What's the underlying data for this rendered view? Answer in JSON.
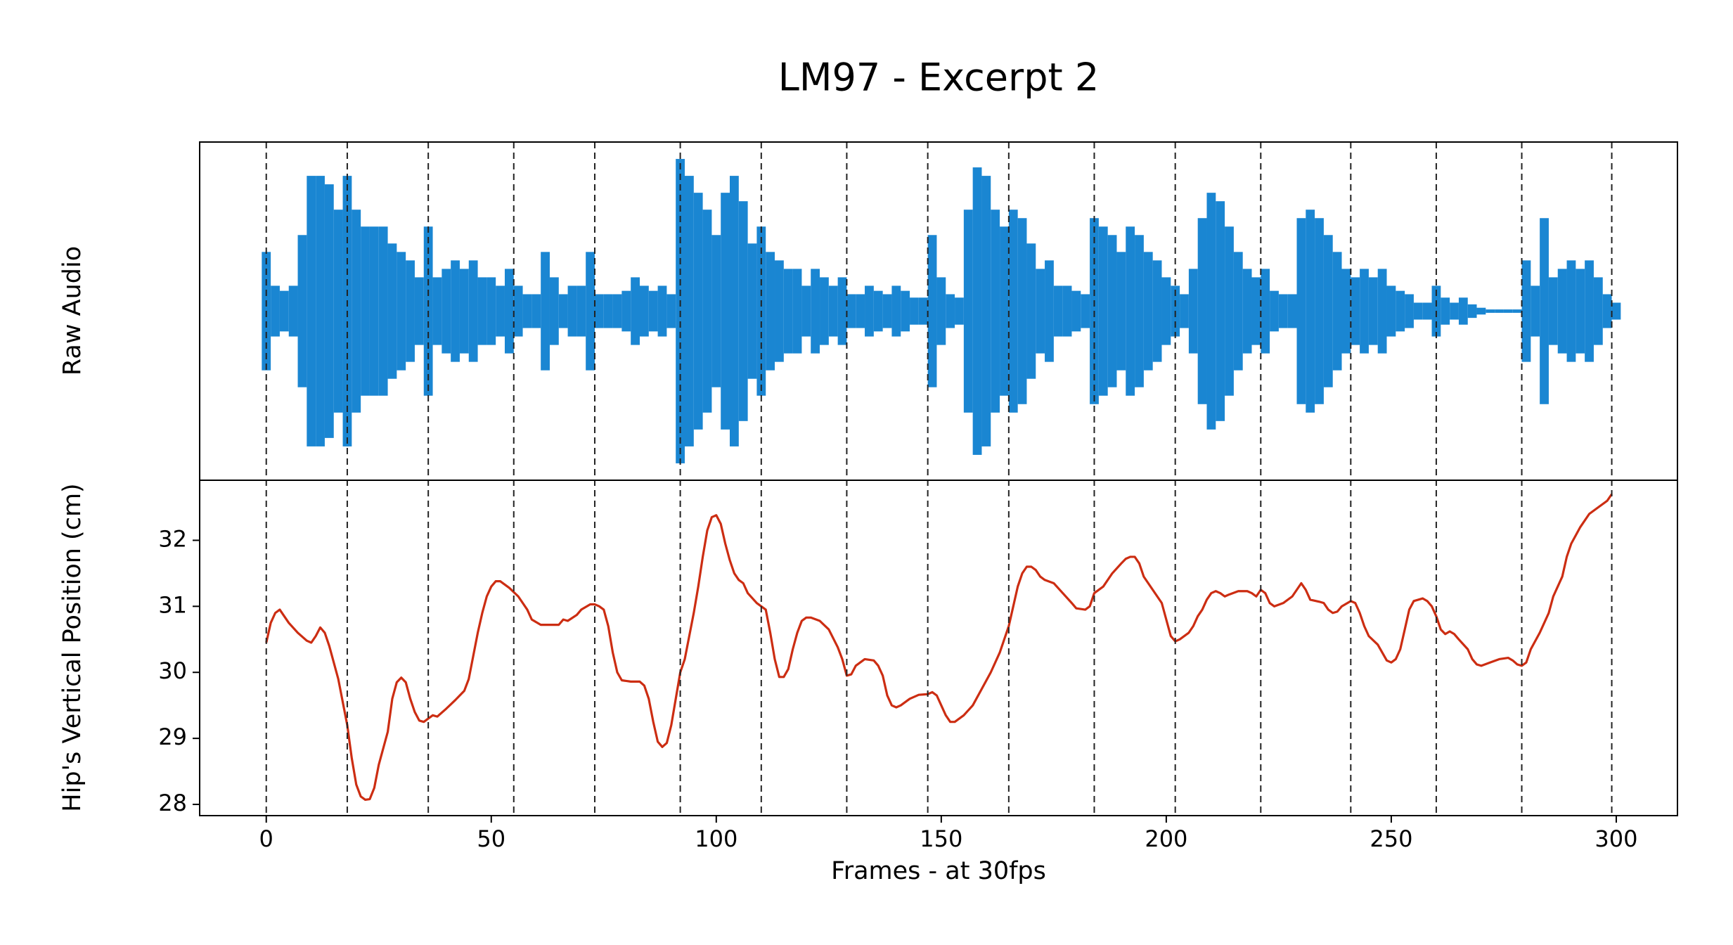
{
  "title": "LM97 - Excerpt 2",
  "x_label": "Frames - at 30fps",
  "xlim": [
    -14.8,
    313.6
  ],
  "xticks": [
    0,
    50,
    100,
    150,
    200,
    250,
    300
  ],
  "beats": [
    0,
    18,
    36,
    55,
    73,
    92,
    110,
    129,
    147,
    165,
    184,
    202,
    221,
    241,
    260,
    279,
    299
  ],
  "chart_data": [
    {
      "type": "waveform",
      "y_label": "Raw Audio",
      "color": "#1a86d2",
      "ylim": [
        -1,
        1
      ],
      "x": [
        0,
        2,
        4,
        6,
        8,
        10,
        12,
        14,
        16,
        18,
        20,
        22,
        24,
        26,
        28,
        30,
        32,
        34,
        36,
        38,
        40,
        42,
        44,
        46,
        48,
        50,
        52,
        54,
        56,
        58,
        60,
        62,
        64,
        66,
        68,
        70,
        72,
        74,
        76,
        78,
        80,
        82,
        84,
        86,
        88,
        90,
        92,
        94,
        96,
        98,
        100,
        102,
        104,
        106,
        108,
        110,
        112,
        114,
        116,
        118,
        120,
        122,
        124,
        126,
        128,
        130,
        132,
        134,
        136,
        138,
        140,
        142,
        144,
        146,
        148,
        150,
        152,
        154,
        156,
        158,
        160,
        162,
        164,
        166,
        168,
        170,
        172,
        174,
        176,
        178,
        180,
        182,
        184,
        186,
        188,
        190,
        192,
        194,
        196,
        198,
        200,
        202,
        204,
        206,
        208,
        210,
        212,
        214,
        216,
        218,
        220,
        222,
        224,
        226,
        228,
        230,
        232,
        234,
        236,
        238,
        240,
        242,
        244,
        246,
        248,
        250,
        252,
        254,
        256,
        258,
        260,
        262,
        264,
        266,
        268,
        270,
        272,
        274,
        276,
        278,
        280,
        282,
        284,
        286,
        288,
        290,
        292,
        294,
        296,
        298,
        300
      ],
      "values": [
        0.35,
        0.15,
        0.12,
        0.15,
        0.45,
        0.8,
        0.8,
        0.75,
        0.6,
        0.8,
        0.6,
        0.5,
        0.5,
        0.5,
        0.4,
        0.35,
        0.3,
        0.2,
        0.5,
        0.2,
        0.25,
        0.3,
        0.25,
        0.3,
        0.2,
        0.2,
        0.15,
        0.25,
        0.15,
        0.1,
        0.1,
        0.35,
        0.2,
        0.1,
        0.15,
        0.15,
        0.35,
        0.1,
        0.1,
        0.1,
        0.12,
        0.2,
        0.15,
        0.12,
        0.15,
        0.1,
        0.9,
        0.8,
        0.7,
        0.6,
        0.45,
        0.7,
        0.8,
        0.65,
        0.4,
        0.5,
        0.35,
        0.3,
        0.25,
        0.25,
        0.15,
        0.25,
        0.2,
        0.15,
        0.2,
        0.1,
        0.1,
        0.15,
        0.12,
        0.1,
        0.15,
        0.12,
        0.08,
        0.08,
        0.45,
        0.2,
        0.1,
        0.08,
        0.6,
        0.85,
        0.8,
        0.6,
        0.5,
        0.6,
        0.55,
        0.4,
        0.25,
        0.3,
        0.15,
        0.15,
        0.12,
        0.1,
        0.55,
        0.5,
        0.45,
        0.35,
        0.5,
        0.45,
        0.35,
        0.3,
        0.2,
        0.15,
        0.1,
        0.25,
        0.55,
        0.7,
        0.65,
        0.5,
        0.35,
        0.25,
        0.2,
        0.25,
        0.12,
        0.1,
        0.1,
        0.55,
        0.6,
        0.55,
        0.45,
        0.35,
        0.25,
        0.2,
        0.25,
        0.2,
        0.25,
        0.15,
        0.12,
        0.1,
        0.05,
        0.05,
        0.15,
        0.08,
        0.05,
        0.08,
        0.04,
        0.02,
        0.01,
        0.01,
        0.01,
        0.01,
        0.3,
        0.15,
        0.55,
        0.2,
        0.25,
        0.3,
        0.25,
        0.3,
        0.2,
        0.1,
        0.05
      ]
    },
    {
      "type": "line",
      "y_label": "Hip's Vertical Position (cm)",
      "color": "#cc2d12",
      "ylim": [
        27.83,
        32.91
      ],
      "yticks": [
        28,
        29,
        30,
        31,
        32
      ],
      "x": [
        0,
        1,
        2,
        3,
        5,
        7,
        9,
        10,
        11,
        12,
        13,
        14,
        16,
        18,
        19,
        20,
        21,
        22,
        23,
        24,
        25,
        27,
        28,
        29,
        30,
        31,
        32,
        33,
        34,
        35,
        36,
        37,
        38,
        40,
        42,
        44,
        45,
        46,
        47,
        48,
        49,
        50,
        51,
        52,
        54,
        56,
        58,
        59,
        61,
        63,
        65,
        66,
        67,
        69,
        70,
        72,
        73,
        74,
        75,
        76,
        77,
        78,
        79,
        81,
        83,
        84,
        85,
        86,
        87,
        88,
        89,
        90,
        91,
        92,
        93,
        94,
        95,
        96,
        97,
        98,
        99,
        100,
        101,
        102,
        103,
        104,
        105,
        106,
        107,
        109,
        111,
        112,
        113,
        114,
        115,
        116,
        117,
        118,
        119,
        120,
        121,
        123,
        125,
        127,
        128,
        129,
        130,
        131,
        133,
        135,
        136,
        137,
        138,
        139,
        140,
        141,
        143,
        145,
        147,
        148,
        149,
        150,
        151,
        152,
        153,
        155,
        157,
        159,
        161,
        163,
        164,
        165,
        166,
        167,
        168,
        169,
        170,
        171,
        172,
        173,
        175,
        177,
        179,
        180,
        182,
        183,
        184,
        186,
        188,
        190,
        191,
        192,
        193,
        194,
        195,
        197,
        199,
        200,
        201,
        202,
        203,
        205,
        206,
        207,
        208,
        209,
        210,
        211,
        212,
        213,
        214,
        216,
        218,
        219,
        220,
        221,
        222,
        223,
        224,
        226,
        228,
        229,
        230,
        231,
        232,
        234,
        235,
        236,
        237,
        238,
        239,
        241,
        242,
        243,
        244,
        245,
        247,
        248,
        249,
        250,
        251,
        252,
        253,
        254,
        255,
        257,
        258,
        259,
        260,
        261,
        262,
        263,
        264,
        265,
        267,
        268,
        269,
        270,
        272,
        274,
        276,
        277,
        278,
        279,
        280,
        281,
        283,
        285,
        286,
        288,
        289,
        290,
        292,
        294,
        296,
        298,
        299
      ],
      "values": [
        30.45,
        30.75,
        30.9,
        30.95,
        30.75,
        30.6,
        30.48,
        30.45,
        30.55,
        30.68,
        30.6,
        30.4,
        29.9,
        29.2,
        28.7,
        28.3,
        28.12,
        28.07,
        28.08,
        28.25,
        28.6,
        29.1,
        29.6,
        29.85,
        29.92,
        29.85,
        29.6,
        29.4,
        29.27,
        29.25,
        29.3,
        29.35,
        29.33,
        29.45,
        29.58,
        29.72,
        29.9,
        30.25,
        30.6,
        30.9,
        31.15,
        31.3,
        31.38,
        31.38,
        31.28,
        31.15,
        30.95,
        30.8,
        30.72,
        30.72,
        30.72,
        30.8,
        30.78,
        30.87,
        30.95,
        31.03,
        31.03,
        31.0,
        30.95,
        30.7,
        30.3,
        30.0,
        29.88,
        29.86,
        29.86,
        29.8,
        29.6,
        29.25,
        28.95,
        28.87,
        28.93,
        29.2,
        29.6,
        30.0,
        30.2,
        30.55,
        30.9,
        31.3,
        31.75,
        32.15,
        32.35,
        32.38,
        32.25,
        31.95,
        31.7,
        31.5,
        31.4,
        31.35,
        31.2,
        31.05,
        30.95,
        30.6,
        30.2,
        29.93,
        29.93,
        30.05,
        30.35,
        30.6,
        30.78,
        30.83,
        30.83,
        30.78,
        30.65,
        30.38,
        30.2,
        29.95,
        29.97,
        30.1,
        30.2,
        30.18,
        30.1,
        29.95,
        29.65,
        29.5,
        29.47,
        29.5,
        29.6,
        29.66,
        29.67,
        29.7,
        29.65,
        29.5,
        29.35,
        29.25,
        29.25,
        29.35,
        29.5,
        29.75,
        30.0,
        30.3,
        30.5,
        30.7,
        31.0,
        31.3,
        31.5,
        31.6,
        31.6,
        31.55,
        31.45,
        31.4,
        31.35,
        31.2,
        31.05,
        30.97,
        30.95,
        31.0,
        31.2,
        31.3,
        31.5,
        31.65,
        31.72,
        31.75,
        31.75,
        31.65,
        31.45,
        31.25,
        31.05,
        30.8,
        30.55,
        30.47,
        30.5,
        30.6,
        30.7,
        30.85,
        30.95,
        31.1,
        31.2,
        31.23,
        31.2,
        31.15,
        31.18,
        31.23,
        31.23,
        31.2,
        31.15,
        31.25,
        31.2,
        31.05,
        31.0,
        31.05,
        31.15,
        31.25,
        31.35,
        31.25,
        31.1,
        31.07,
        31.05,
        30.95,
        30.9,
        30.92,
        31.0,
        31.08,
        31.05,
        30.9,
        30.7,
        30.55,
        30.42,
        30.3,
        30.18,
        30.15,
        30.2,
        30.35,
        30.65,
        30.95,
        31.08,
        31.12,
        31.08,
        31.0,
        30.85,
        30.65,
        30.58,
        30.62,
        30.58,
        30.5,
        30.35,
        30.2,
        30.12,
        30.1,
        30.15,
        30.2,
        30.22,
        30.18,
        30.12,
        30.1,
        30.15,
        30.35,
        30.6,
        30.9,
        31.15,
        31.45,
        31.75,
        31.95,
        32.2,
        32.4,
        32.5,
        32.6,
        32.7
      ]
    }
  ]
}
